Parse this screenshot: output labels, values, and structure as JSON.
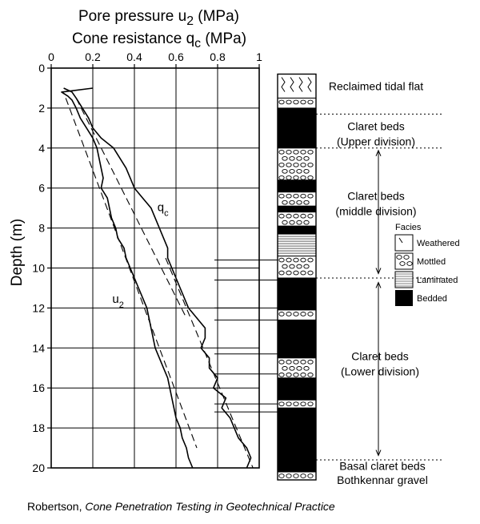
{
  "chart_data": {
    "type": "line",
    "axis_titles": {
      "top_line1_prefix": "Pore pressure u",
      "top_line1_sub": "2",
      "top_line1_suffix": " (MPa)",
      "top_line2_prefix": "Cone resistance q",
      "top_line2_sub": "c",
      "top_line2_suffix": " (MPa)",
      "ylabel": "Depth (m)"
    },
    "x_ticks": [
      "0",
      "0.2",
      "0.4",
      "0.6",
      "0.8",
      "1"
    ],
    "x_tick_values": [
      0,
      0.2,
      0.4,
      0.6,
      0.8,
      1.0
    ],
    "xlim": [
      0,
      1
    ],
    "y_ticks": [
      "0",
      "2",
      "4",
      "6",
      "8",
      "10",
      "12",
      "14",
      "16",
      "18",
      "20"
    ],
    "y_tick_values": [
      0,
      2,
      4,
      6,
      8,
      10,
      12,
      14,
      16,
      18,
      20
    ],
    "ylim": [
      0,
      20
    ],
    "y_inverted": true,
    "grid": true,
    "series": [
      {
        "name": "qc",
        "label_text": "q",
        "label_sub": "c",
        "points": [
          [
            1.0,
            0.06
          ],
          [
            1.2,
            0.1
          ],
          [
            1.5,
            0.12
          ],
          [
            2.0,
            0.15
          ],
          [
            2.5,
            0.18
          ],
          [
            3.0,
            0.2
          ],
          [
            3.5,
            0.24
          ],
          [
            4.0,
            0.3
          ],
          [
            4.5,
            0.33
          ],
          [
            5.0,
            0.36
          ],
          [
            5.5,
            0.38
          ],
          [
            6.0,
            0.4
          ],
          [
            6.5,
            0.44
          ],
          [
            7.0,
            0.48
          ],
          [
            7.5,
            0.5
          ],
          [
            8.0,
            0.52
          ],
          [
            8.5,
            0.54
          ],
          [
            9.0,
            0.56
          ],
          [
            9.5,
            0.56
          ],
          [
            10.0,
            0.58
          ],
          [
            10.5,
            0.6
          ],
          [
            11.0,
            0.62
          ],
          [
            11.5,
            0.64
          ],
          [
            12.0,
            0.66
          ],
          [
            12.5,
            0.7
          ],
          [
            13.0,
            0.74
          ],
          [
            13.5,
            0.74
          ],
          [
            14.0,
            0.72
          ],
          [
            14.5,
            0.76
          ],
          [
            15.0,
            0.76
          ],
          [
            15.5,
            0.8
          ],
          [
            16.0,
            0.78
          ],
          [
            16.5,
            0.84
          ],
          [
            17.0,
            0.82
          ],
          [
            17.5,
            0.86
          ],
          [
            18.0,
            0.88
          ],
          [
            18.5,
            0.9
          ],
          [
            19.0,
            0.94
          ],
          [
            19.5,
            0.96
          ],
          [
            20.0,
            0.94
          ]
        ]
      },
      {
        "name": "u2",
        "label_text": "u",
        "label_sub": "2",
        "points": [
          [
            1.0,
            0.2
          ],
          [
            1.2,
            0.05
          ],
          [
            1.4,
            0.08
          ],
          [
            1.6,
            0.1
          ],
          [
            2.0,
            0.12
          ],
          [
            2.5,
            0.14
          ],
          [
            3.0,
            0.17
          ],
          [
            3.5,
            0.2
          ],
          [
            4.0,
            0.22
          ],
          [
            4.5,
            0.23
          ],
          [
            5.0,
            0.24
          ],
          [
            5.5,
            0.25
          ],
          [
            6.0,
            0.24
          ],
          [
            6.5,
            0.27
          ],
          [
            7.0,
            0.28
          ],
          [
            7.5,
            0.29
          ],
          [
            8.0,
            0.31
          ],
          [
            8.5,
            0.32
          ],
          [
            9.0,
            0.35
          ],
          [
            9.5,
            0.36
          ],
          [
            10.0,
            0.38
          ],
          [
            10.5,
            0.4
          ],
          [
            11.0,
            0.42
          ],
          [
            11.5,
            0.44
          ],
          [
            12.0,
            0.46
          ],
          [
            12.5,
            0.47
          ],
          [
            13.0,
            0.48
          ],
          [
            13.5,
            0.49
          ],
          [
            14.0,
            0.5
          ],
          [
            14.5,
            0.52
          ],
          [
            15.0,
            0.54
          ],
          [
            15.5,
            0.56
          ],
          [
            16.0,
            0.57
          ],
          [
            16.5,
            0.58
          ],
          [
            17.0,
            0.59
          ],
          [
            17.5,
            0.6
          ],
          [
            18.0,
            0.62
          ],
          [
            18.5,
            0.63
          ],
          [
            19.0,
            0.65
          ],
          [
            19.5,
            0.66
          ],
          [
            20.0,
            0.68
          ]
        ]
      }
    ],
    "trend_lines": [
      {
        "name": "qc-trend",
        "from": [
          1.5,
          0.12
        ],
        "to": [
          12.5,
          0.65
        ]
      },
      {
        "name": "qc-trend-lower",
        "from": [
          9.5,
          0.55
        ],
        "to": [
          20.0,
          0.97
        ]
      },
      {
        "name": "u2-trend",
        "from": [
          1.5,
          0.07
        ],
        "to": [
          19.0,
          0.7
        ]
      }
    ],
    "stratigraphy": {
      "units": [
        {
          "name": "Reclaimed tidal flat",
          "lines": [
            "Reclaimed tidal flat"
          ],
          "top": 0.3,
          "bottom": 2.3
        },
        {
          "name": "Claret beds (Upper division)",
          "lines": [
            "Claret beds",
            "(Upper division)"
          ],
          "top": 2.3,
          "bottom": 4.0
        },
        {
          "name": "Claret beds (middle division)",
          "lines": [
            "Claret beds",
            "(middle division)"
          ],
          "top": 4.0,
          "bottom": 10.5
        },
        {
          "name": "Claret beds (Lower division)",
          "lines": [
            "Claret beds",
            "(Lower division)"
          ],
          "top": 10.5,
          "bottom": 19.6
        },
        {
          "name": "Basal claret beds",
          "lines": [
            "Basal claret beds"
          ],
          "top": 19.6,
          "bottom": 20.2
        },
        {
          "name": "Bothkennar gravel",
          "lines": [
            "Bothkennar gravel"
          ],
          "top": 20.2,
          "bottom": 20.6
        }
      ],
      "column": [
        {
          "top": 0.3,
          "bottom": 1.5,
          "facies": "weathered"
        },
        {
          "top": 1.5,
          "bottom": 2.0,
          "facies": "mottled"
        },
        {
          "top": 2.0,
          "bottom": 4.0,
          "facies": "bedded"
        },
        {
          "top": 4.0,
          "bottom": 5.6,
          "facies": "mottled"
        },
        {
          "top": 5.6,
          "bottom": 6.2,
          "facies": "bedded"
        },
        {
          "top": 6.2,
          "bottom": 6.9,
          "facies": "mottled"
        },
        {
          "top": 6.9,
          "bottom": 7.2,
          "facies": "bedded"
        },
        {
          "top": 7.2,
          "bottom": 7.9,
          "facies": "mottled"
        },
        {
          "top": 7.9,
          "bottom": 8.3,
          "facies": "bedded"
        },
        {
          "top": 8.3,
          "bottom": 9.4,
          "facies": "laminated"
        },
        {
          "top": 9.4,
          "bottom": 10.5,
          "facies": "mottled"
        },
        {
          "top": 10.5,
          "bottom": 12.1,
          "facies": "bedded"
        },
        {
          "top": 12.1,
          "bottom": 12.6,
          "facies": "mottled"
        },
        {
          "top": 12.6,
          "bottom": 14.5,
          "facies": "bedded"
        },
        {
          "top": 14.5,
          "bottom": 15.5,
          "facies": "mottled"
        },
        {
          "top": 15.5,
          "bottom": 16.6,
          "facies": "bedded"
        },
        {
          "top": 16.6,
          "bottom": 17.0,
          "facies": "mottled"
        },
        {
          "top": 17.0,
          "bottom": 20.2,
          "facies": "bedded"
        },
        {
          "top": 20.2,
          "bottom": 20.6,
          "facies": "mottled"
        }
      ],
      "layer_ticks": [
        9.6,
        10.6,
        12.0,
        12.6,
        14.3,
        15.3,
        16.8,
        17.2
      ],
      "arrows": [
        [
          4.0,
          10.4
        ],
        [
          10.6,
          19.5
        ]
      ]
    },
    "legend": {
      "title": "Facies",
      "items": [
        "Weathered",
        "Mottled",
        "Laminated",
        "Bedded"
      ]
    }
  },
  "caption": {
    "author": "Robertson, ",
    "title": "Cone Penetration Testing in Geotechnical Practice"
  }
}
